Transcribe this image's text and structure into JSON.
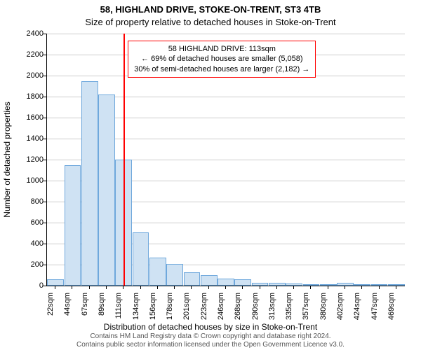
{
  "title_line1": "58, HIGHLAND DRIVE, STOKE-ON-TRENT, ST3 4TB",
  "title_line2": "Size of property relative to detached houses in Stoke-on-Trent",
  "title_fontsize": 13,
  "ylabel": "Number of detached properties",
  "xlabel": "Distribution of detached houses by size in Stoke-on-Trent",
  "axis_label_fontsize": 12,
  "tick_fontsize": 11,
  "footer_line1": "Contains HM Land Registry data © Crown copyright and database right 2024.",
  "footer_line2": "Contains public sector information licensed under the Open Government Licence v3.0.",
  "footer_fontsize": 10,
  "footer_color": "#555555",
  "chart": {
    "type": "bar",
    "background_color": "#ffffff",
    "grid_color": "#cccccc",
    "bar_fill": "#cfe2f3",
    "bar_stroke": "#6fa8dc",
    "highlight_color": "#ff0000",
    "highlight_x_category": "111sqm",
    "annotation": {
      "line1": "58 HIGHLAND DRIVE: 113sqm",
      "line2": "← 69% of detached houses are smaller (5,058)",
      "line3": "30% of semi-detached houses are larger (2,182) →",
      "border_color": "#ff0000",
      "fontsize": 11
    },
    "ymax": 2400,
    "ytick_step": 200,
    "yticks": [
      0,
      200,
      400,
      600,
      800,
      1000,
      1200,
      1400,
      1600,
      1800,
      2000,
      2200,
      2400
    ],
    "categories": [
      "22sqm",
      "44sqm",
      "67sqm",
      "89sqm",
      "111sqm",
      "134sqm",
      "156sqm",
      "178sqm",
      "201sqm",
      "223sqm",
      "246sqm",
      "268sqm",
      "290sqm",
      "313sqm",
      "335sqm",
      "357sqm",
      "380sqm",
      "402sqm",
      "424sqm",
      "447sqm",
      "469sqm"
    ],
    "values": [
      60,
      1150,
      1950,
      1820,
      1200,
      510,
      270,
      210,
      130,
      100,
      70,
      60,
      30,
      30,
      20,
      10,
      5,
      30,
      0,
      0,
      10
    ],
    "bar_width_ratio": 0.98
  }
}
